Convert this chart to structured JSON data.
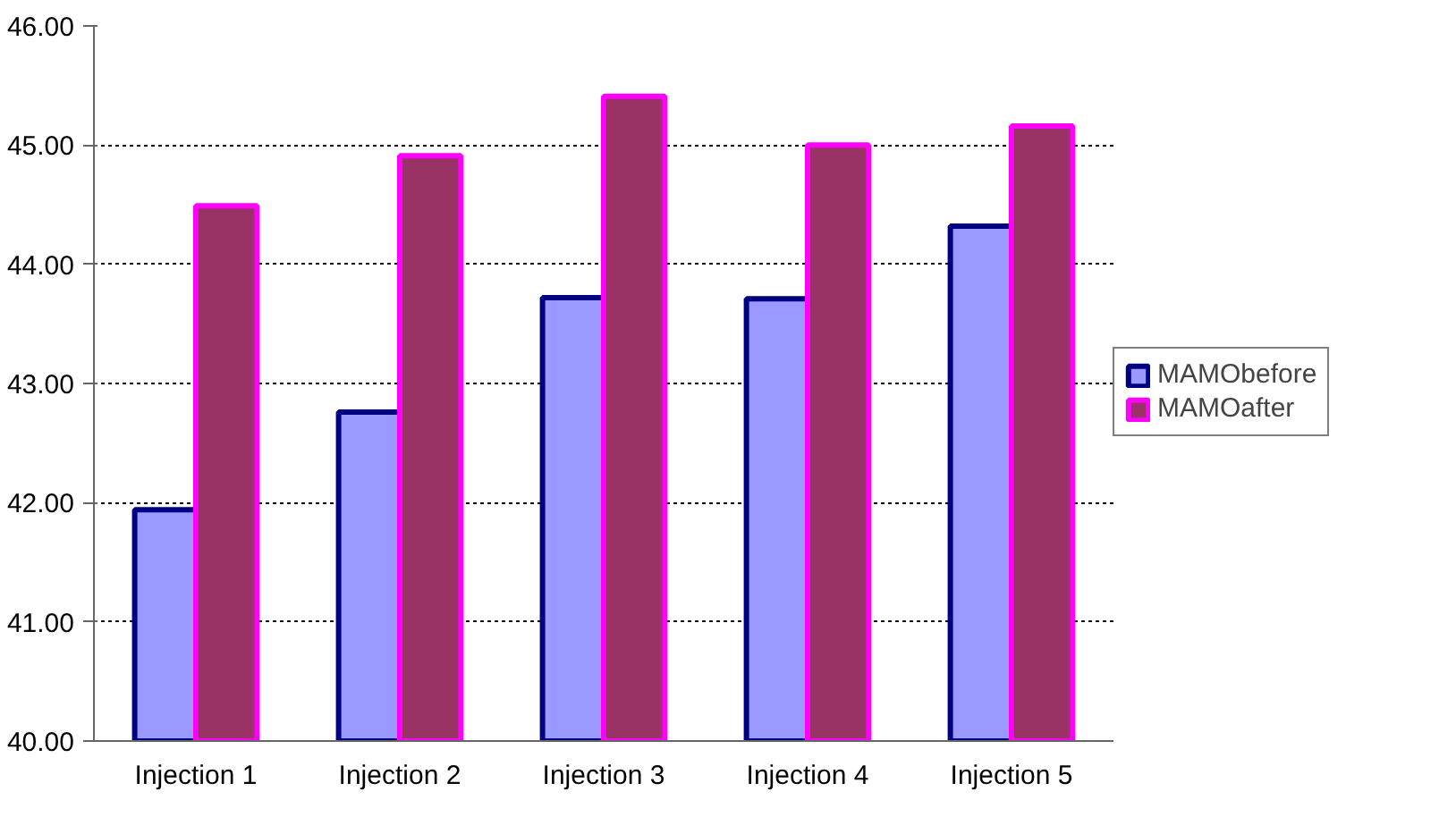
{
  "chart_data": {
    "type": "bar",
    "categories": [
      "Injection 1",
      "Injection 2",
      "Injection 3",
      "Injection 4",
      "Injection 5"
    ],
    "series": [
      {
        "name": "MAMObefore",
        "color": "#9999ff",
        "values": [
          41.94,
          42.76,
          43.72,
          43.71,
          44.32
        ]
      },
      {
        "name": "MAMOafter",
        "color": "#993366",
        "values": [
          44.49,
          44.91,
          45.41,
          45.0,
          45.16
        ]
      }
    ],
    "ylim": [
      40,
      46
    ],
    "yticks": [
      {
        "value": 40,
        "label": "40.00"
      },
      {
        "value": 41,
        "label": "41.00"
      },
      {
        "value": 42,
        "label": "42.00"
      },
      {
        "value": 43,
        "label": "43.00"
      },
      {
        "value": 44,
        "label": "44.00"
      },
      {
        "value": 45,
        "label": "45.00"
      },
      {
        "value": 46,
        "label": "46.00"
      }
    ],
    "grid": "y",
    "legend": "right"
  }
}
